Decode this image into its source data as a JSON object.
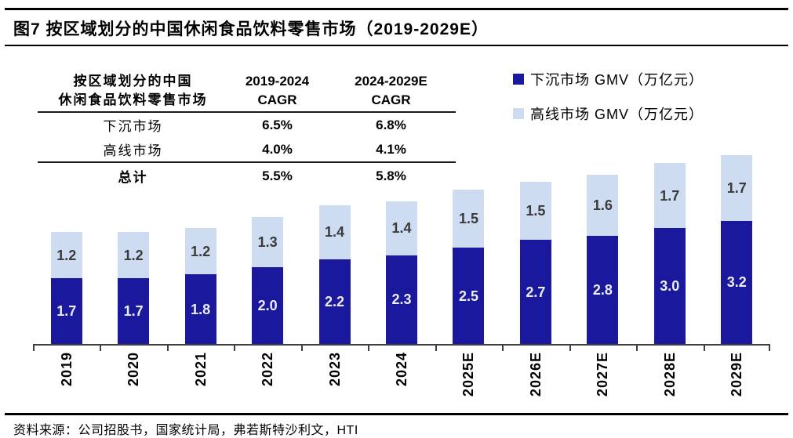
{
  "page": {
    "title": "图7 按区域划分的中国休闲食品饮料零售市场（2019-2029E）",
    "source": "资料来源：公司招股书，国家统计局，弗若斯特沙利文，HTI"
  },
  "table": {
    "header": {
      "col1_line1": "按区域划分的中国",
      "col1_line2": "休闲食品饮料零售市场",
      "col2_line1": "2019-2024",
      "col2_line2": "CAGR",
      "col3_line1": "2024-2029E",
      "col3_line2": "CAGR"
    },
    "rows": [
      {
        "label": "下沉市场",
        "cagr1": "6.5%",
        "cagr2": "6.8%"
      },
      {
        "label": "高线市场",
        "cagr1": "4.0%",
        "cagr2": "4.1%"
      }
    ],
    "total": {
      "label": "总计",
      "cagr1": "5.5%",
      "cagr2": "5.8%"
    }
  },
  "legend": [
    {
      "label": "下沉市场 GMV（万亿元）",
      "color": "#1A189C"
    },
    {
      "label": "高线市场 GMV（万亿元）",
      "color": "#CDDCF1"
    }
  ],
  "chart_data": {
    "type": "bar",
    "stacked": true,
    "title": "按区域划分的中国休闲食品饮料零售市场（2019-2029E）",
    "unit": "万亿元",
    "categories": [
      "2019",
      "2020",
      "2021",
      "2022",
      "2023",
      "2024",
      "2025E",
      "2026E",
      "2027E",
      "2028E",
      "2029E"
    ],
    "series": [
      {
        "name": "下沉市场 GMV（万亿元）",
        "key": "lower-tier-market",
        "color": "#1A189C",
        "label_color": "#EDEDF8",
        "values": [
          1.7,
          1.7,
          1.8,
          2.0,
          2.2,
          2.3,
          2.5,
          2.7,
          2.8,
          3.0,
          3.2
        ]
      },
      {
        "name": "高线市场 GMV（万亿元）",
        "key": "higher-tier-market",
        "color": "#CDDCF1",
        "label_color": "#3a3a3a",
        "values": [
          1.2,
          1.2,
          1.2,
          1.3,
          1.4,
          1.4,
          1.5,
          1.5,
          1.6,
          1.7,
          1.7
        ]
      }
    ],
    "totals": [
      2.9,
      2.9,
      3.0,
      3.3,
      3.6,
      3.7,
      4.0,
      4.2,
      4.4,
      4.7,
      4.9
    ],
    "ylim": [
      0,
      5.0
    ],
    "value_labels": true,
    "grid": false,
    "y_axis_visible": false,
    "legend_position": "top-right",
    "axis_color": "#404040"
  }
}
